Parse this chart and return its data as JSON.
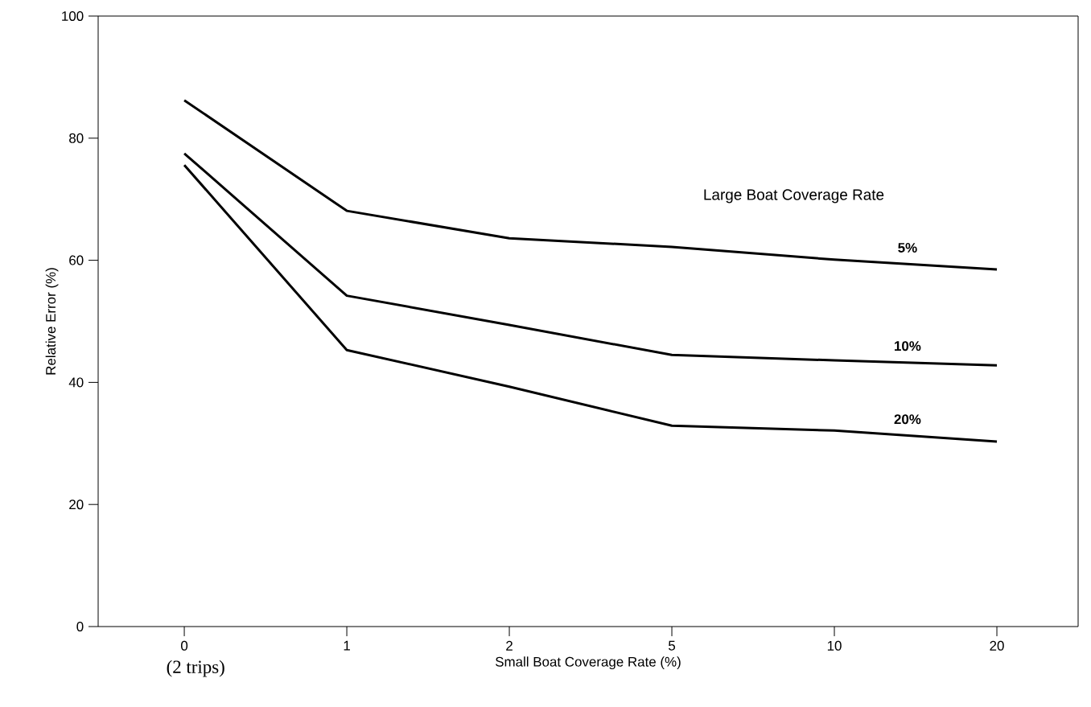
{
  "chart_data": {
    "type": "line",
    "xlabel": "Small Boat Coverage Rate  (%)",
    "ylabel": "Relative Error  (%)",
    "legend_title": "Large Boat Coverage Rate",
    "categories": [
      "0",
      "1",
      "2",
      "5",
      "10",
      "20"
    ],
    "ylim": [
      0,
      100
    ],
    "yticks": [
      0,
      20,
      40,
      60,
      80,
      100
    ],
    "series": [
      {
        "name": "5%",
        "color": "#000000",
        "values": [
          86.2,
          68.1,
          63.6,
          62.2,
          60.1,
          58.5
        ]
      },
      {
        "name": "10%",
        "color": "#000000",
        "values": [
          77.5,
          54.2,
          49.4,
          44.5,
          43.6,
          42.8
        ]
      },
      {
        "name": "20%",
        "color": "#000000",
        "values": [
          75.6,
          45.3,
          39.3,
          32.9,
          32.1,
          30.3
        ]
      }
    ],
    "annotations": [
      "(2 trips)"
    ],
    "grid": false,
    "marker": "none",
    "line_style": "solid"
  }
}
